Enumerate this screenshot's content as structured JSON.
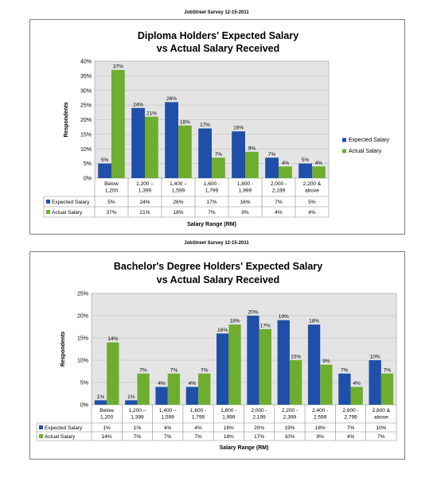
{
  "colors": {
    "expected": "#1f4fa8",
    "actual": "#6fad2e",
    "plot_bg": "#e4e4e4",
    "grid": "#b8b8b8"
  },
  "chart_data": [
    {
      "type": "bar",
      "source": "JobStreet Survey 12-15-2011",
      "title_line1": "Diploma Holders' Expected Salary",
      "title_line2": "vs Actual Salary Received",
      "xlabel": "Salary Range (RM)",
      "ylabel": "Respondents",
      "ylim": [
        0,
        40
      ],
      "yticks": [
        "0%",
        "5%",
        "10%",
        "15%",
        "20%",
        "25%",
        "30%",
        "35%",
        "40%"
      ],
      "grid": true,
      "legend_position": "right",
      "categories": [
        [
          "Below",
          "1,200"
        ],
        [
          "1,200 –",
          "1,399"
        ],
        [
          "1,400 –",
          "1,599"
        ],
        [
          "1,600 -",
          "1,799"
        ],
        [
          "1,800 -",
          "1,999"
        ],
        [
          "2,000 -",
          "2,199"
        ],
        [
          "2,200 &",
          "above"
        ]
      ],
      "series": [
        {
          "name": "Expected Salary",
          "values": [
            5,
            24,
            26,
            17,
            16,
            7,
            5
          ],
          "labels": [
            "5%",
            "24%",
            "26%",
            "17%",
            "16%",
            "7%",
            "5%"
          ]
        },
        {
          "name": "Actual Salary",
          "values": [
            37,
            21,
            18,
            7,
            9,
            4,
            4
          ],
          "labels": [
            "37%",
            "21%",
            "18%",
            "7%",
            "9%",
            "4%",
            "4%"
          ]
        }
      ]
    },
    {
      "type": "bar",
      "source": "JobStreet Survey 12-15-2011",
      "title_line1": "Bachelor's Degree Holders' Expected Salary",
      "title_line2": "vs Actual Salary Received",
      "xlabel": "Salary Range (RM)",
      "ylabel": "Respondents",
      "ylim": [
        0,
        25
      ],
      "yticks": [
        "0%",
        "5%",
        "10%",
        "15%",
        "20%",
        "25%"
      ],
      "grid": true,
      "legend_position": "bottom-table",
      "categories": [
        [
          "Below",
          "1,200"
        ],
        [
          "1,200 –",
          "1,399"
        ],
        [
          "1,400 –",
          "1,599"
        ],
        [
          "1,600 -",
          "1,799"
        ],
        [
          "1,800 -",
          "1,999"
        ],
        [
          "2,000 -",
          "2,199"
        ],
        [
          "2,200 -",
          "2,399"
        ],
        [
          "2,400 -",
          "2,599"
        ],
        [
          "2,600 -",
          "2,799"
        ],
        [
          "2,800 &",
          "above"
        ]
      ],
      "series": [
        {
          "name": "Expected Salary",
          "values": [
            1,
            1,
            4,
            4,
            16,
            20,
            19,
            18,
            7,
            10
          ],
          "labels": [
            "1%",
            "1%",
            "4%",
            "4%",
            "16%",
            "20%",
            "19%",
            "18%",
            "7%",
            "10%"
          ]
        },
        {
          "name": "Actual Salary",
          "values": [
            14,
            7,
            7,
            7,
            18,
            17,
            10,
            9,
            4,
            7
          ],
          "labels": [
            "14%",
            "7%",
            "7%",
            "7%",
            "18%",
            "17%",
            "10%",
            "9%",
            "4%",
            "7%"
          ]
        }
      ]
    }
  ]
}
